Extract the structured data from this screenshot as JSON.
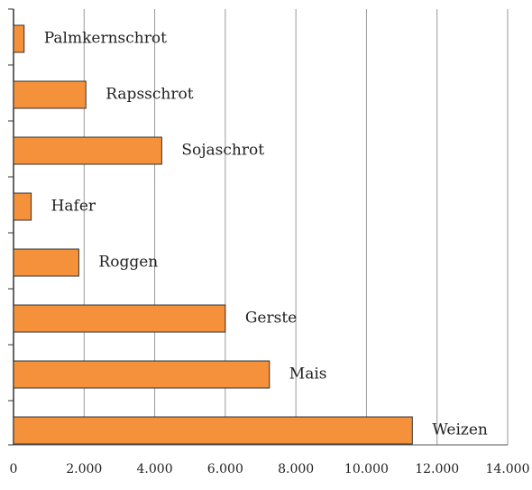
{
  "chart_data": {
    "type": "bar",
    "orientation": "horizontal",
    "categories": [
      "Palmkernschrot",
      "Rapsschrot",
      "Sojaschrot",
      "Hafer",
      "Roggen",
      "Gerste",
      "Mais",
      "Weizen"
    ],
    "values": [
      300,
      2050,
      4200,
      500,
      1850,
      6000,
      7250,
      11300
    ],
    "color": "#f5913a",
    "xlim": [
      0,
      14000
    ],
    "xticks": [
      0,
      {
        "value": 2000,
        "label": "2.000"
      },
      {
        "value": 4000,
        "label": "4.000"
      },
      {
        "value": 6000,
        "label": "6.000"
      },
      {
        "value": 8000,
        "label": "8.000"
      },
      {
        "value": 10000,
        "label": "10.000"
      },
      {
        "value": 12000,
        "label": "12.000"
      },
      {
        "value": 14000,
        "label": "14.000"
      }
    ],
    "grid": true
  }
}
